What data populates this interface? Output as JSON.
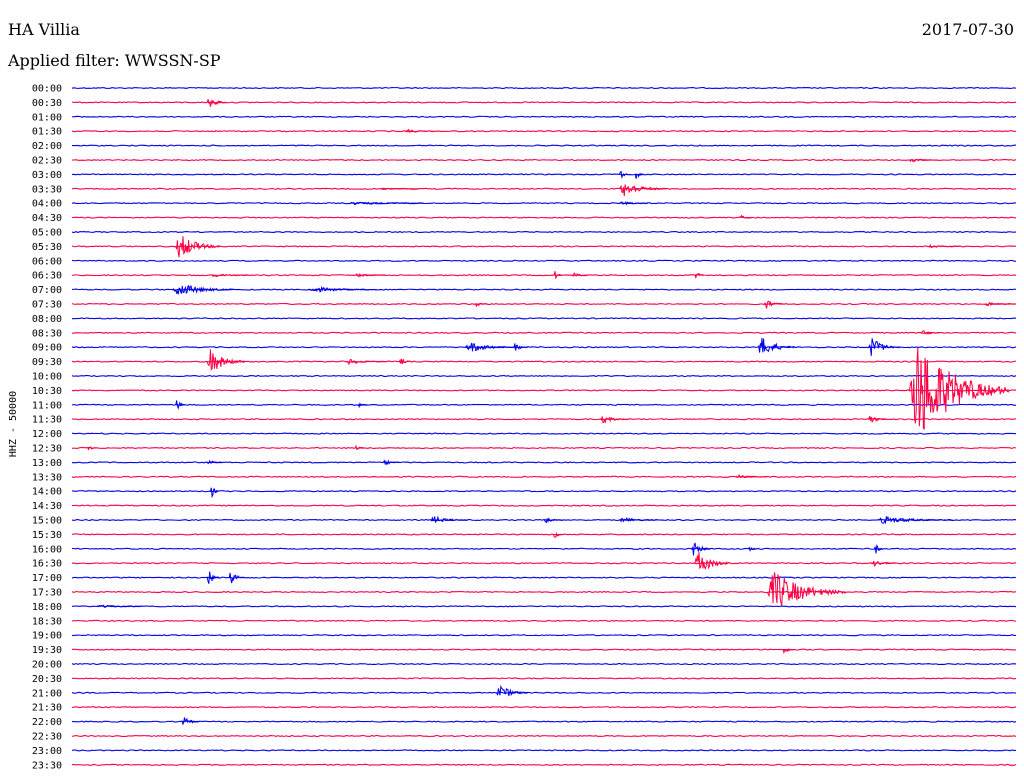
{
  "header": {
    "station": "HA Villia",
    "date": "2017-07-30",
    "filter": "Applied filter: WWSSN-SP"
  },
  "colors": {
    "blue": "#0000ee",
    "red": "#ff0044"
  },
  "chart_data": {
    "type": "line",
    "title": "",
    "ylabel": "HHZ - 50000",
    "row_interval_minutes": 30,
    "rows": [
      "00:00",
      "00:30",
      "01:00",
      "01:30",
      "02:00",
      "02:30",
      "03:00",
      "03:30",
      "04:00",
      "04:30",
      "05:00",
      "05:30",
      "06:00",
      "06:30",
      "07:00",
      "07:30",
      "08:00",
      "08:30",
      "09:00",
      "09:30",
      "10:00",
      "10:30",
      "11:00",
      "11:30",
      "12:00",
      "12:30",
      "13:00",
      "13:30",
      "14:00",
      "14:30",
      "15:00",
      "15:30",
      "16:00",
      "16:30",
      "17:00",
      "17:30",
      "18:00",
      "18:30",
      "19:00",
      "19:30",
      "20:00",
      "20:30",
      "21:00",
      "21:30",
      "22:00",
      "22:30",
      "23:00",
      "23:30"
    ],
    "color_pattern": [
      "blue",
      "red"
    ],
    "events": [
      {
        "row": 1,
        "start_min": 4.3,
        "amp": 7,
        "dur_min": 0.6
      },
      {
        "row": 3,
        "start_min": 10.6,
        "amp": 2,
        "dur_min": 0.9
      },
      {
        "row": 5,
        "start_min": 26.6,
        "amp": 2,
        "dur_min": 0.9
      },
      {
        "row": 6,
        "start_min": 17.4,
        "amp": 5,
        "dur_min": 0.3
      },
      {
        "row": 6,
        "start_min": 17.9,
        "amp": 5,
        "dur_min": 0.3
      },
      {
        "row": 7,
        "start_min": 17.4,
        "amp": 8,
        "dur_min": 1.5
      },
      {
        "row": 7,
        "start_min": 9.8,
        "amp": 1,
        "dur_min": 1.2
      },
      {
        "row": 8,
        "start_min": 8.8,
        "amp": 2,
        "dur_min": 2.4
      },
      {
        "row": 8,
        "start_min": 17.4,
        "amp": 2,
        "dur_min": 0.9
      },
      {
        "row": 9,
        "start_min": 21.2,
        "amp": 3,
        "dur_min": 0.4
      },
      {
        "row": 11,
        "start_min": 3.3,
        "amp": 14,
        "dur_min": 1.4
      },
      {
        "row": 11,
        "start_min": 27.2,
        "amp": 2,
        "dur_min": 1.0
      },
      {
        "row": 13,
        "start_min": 4.4,
        "amp": 2,
        "dur_min": 1.2
      },
      {
        "row": 13,
        "start_min": 9.0,
        "amp": 2,
        "dur_min": 1.0
      },
      {
        "row": 13,
        "start_min": 15.3,
        "amp": 6,
        "dur_min": 0.3
      },
      {
        "row": 13,
        "start_min": 15.9,
        "amp": 3,
        "dur_min": 0.5
      },
      {
        "row": 13,
        "start_min": 19.8,
        "amp": 5,
        "dur_min": 0.3
      },
      {
        "row": 14,
        "start_min": 3.2,
        "amp": 7,
        "dur_min": 2.0
      },
      {
        "row": 14,
        "start_min": 7.5,
        "amp": 3,
        "dur_min": 2.2
      },
      {
        "row": 15,
        "start_min": 12.8,
        "amp": 3,
        "dur_min": 0.4
      },
      {
        "row": 15,
        "start_min": 22.0,
        "amp": 6,
        "dur_min": 0.6
      },
      {
        "row": 15,
        "start_min": 29.0,
        "amp": 2,
        "dur_min": 1.0
      },
      {
        "row": 17,
        "start_min": 27.0,
        "amp": 3,
        "dur_min": 0.6
      },
      {
        "row": 18,
        "start_min": 12.5,
        "amp": 6,
        "dur_min": 1.5
      },
      {
        "row": 18,
        "start_min": 14.0,
        "amp": 5,
        "dur_min": 0.5
      },
      {
        "row": 18,
        "start_min": 21.8,
        "amp": 11,
        "dur_min": 1.2
      },
      {
        "row": 18,
        "start_min": 25.3,
        "amp": 11,
        "dur_min": 1.0
      },
      {
        "row": 19,
        "start_min": 4.3,
        "amp": 13,
        "dur_min": 1.2
      },
      {
        "row": 19,
        "start_min": 8.7,
        "amp": 3,
        "dur_min": 1.3
      },
      {
        "row": 19,
        "start_min": 10.4,
        "amp": 4,
        "dur_min": 0.4
      },
      {
        "row": 21,
        "start_min": 26.6,
        "amp": 55,
        "dur_min": 3.2
      },
      {
        "row": 22,
        "start_min": 3.3,
        "amp": 8,
        "dur_min": 0.3
      },
      {
        "row": 22,
        "start_min": 9.1,
        "amp": 2,
        "dur_min": 0.3
      },
      {
        "row": 23,
        "start_min": 16.8,
        "amp": 4,
        "dur_min": 0.9
      },
      {
        "row": 23,
        "start_min": 25.3,
        "amp": 5,
        "dur_min": 0.6
      },
      {
        "row": 25,
        "start_min": 0.5,
        "amp": 3,
        "dur_min": 0.3
      },
      {
        "row": 25,
        "start_min": 9.0,
        "amp": 3,
        "dur_min": 0.3
      },
      {
        "row": 26,
        "start_min": 4.3,
        "amp": 4,
        "dur_min": 0.5
      },
      {
        "row": 26,
        "start_min": 9.9,
        "amp": 3,
        "dur_min": 0.5
      },
      {
        "row": 27,
        "start_min": 21.1,
        "amp": 2,
        "dur_min": 1.0
      },
      {
        "row": 28,
        "start_min": 4.4,
        "amp": 7,
        "dur_min": 0.3
      },
      {
        "row": 30,
        "start_min": 11.4,
        "amp": 4,
        "dur_min": 1.2
      },
      {
        "row": 30,
        "start_min": 15.0,
        "amp": 3,
        "dur_min": 0.6
      },
      {
        "row": 30,
        "start_min": 17.4,
        "amp": 3,
        "dur_min": 1.4
      },
      {
        "row": 30,
        "start_min": 25.6,
        "amp": 4,
        "dur_min": 2.4
      },
      {
        "row": 31,
        "start_min": 15.3,
        "amp": 5,
        "dur_min": 0.3
      },
      {
        "row": 32,
        "start_min": 19.7,
        "amp": 8,
        "dur_min": 0.6
      },
      {
        "row": 32,
        "start_min": 25.5,
        "amp": 6,
        "dur_min": 0.3
      },
      {
        "row": 32,
        "start_min": 21.5,
        "amp": 3,
        "dur_min": 0.3
      },
      {
        "row": 33,
        "start_min": 19.8,
        "amp": 14,
        "dur_min": 1.1
      },
      {
        "row": 33,
        "start_min": 25.4,
        "amp": 4,
        "dur_min": 0.8
      },
      {
        "row": 34,
        "start_min": 4.3,
        "amp": 9,
        "dur_min": 0.4
      },
      {
        "row": 34,
        "start_min": 5.0,
        "amp": 9,
        "dur_min": 0.5
      },
      {
        "row": 35,
        "start_min": 22.1,
        "amp": 22,
        "dur_min": 2.5
      },
      {
        "row": 36,
        "start_min": 0.8,
        "amp": 2,
        "dur_min": 1.4
      },
      {
        "row": 39,
        "start_min": 22.6,
        "amp": 4,
        "dur_min": 0.4
      },
      {
        "row": 42,
        "start_min": 13.5,
        "amp": 9,
        "dur_min": 1.0
      },
      {
        "row": 44,
        "start_min": 3.5,
        "amp": 5,
        "dur_min": 0.6
      }
    ]
  }
}
